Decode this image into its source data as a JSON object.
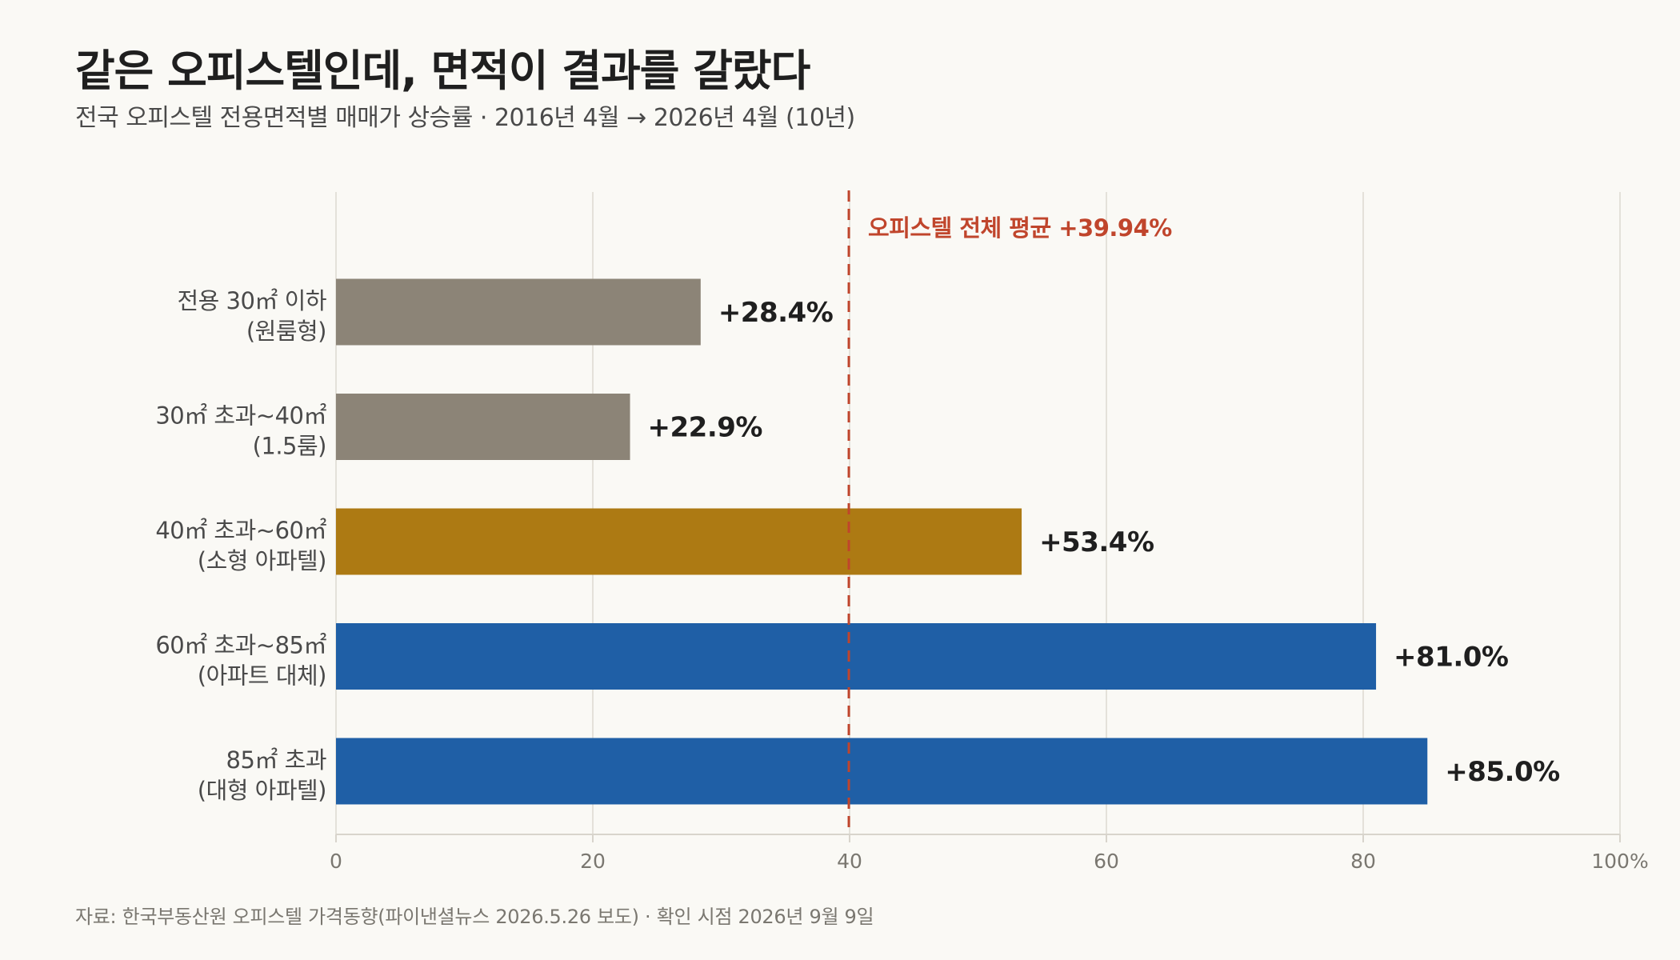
{
  "chart_data": {
    "type": "bar",
    "orientation": "horizontal",
    "title": "같은 오피스텔인데, 면적이 결과를 갈랐다",
    "subtitle": "전국 오피스텔 전용면적별 매매가 상승률 · 2016년 4월 → 2026년 4월 (10년)",
    "categories": [
      [
        "전용 30㎡ 이하",
        "(원룸형)"
      ],
      [
        "30㎡ 초과~40㎡",
        "(1.5룸)"
      ],
      [
        "40㎡ 초과~60㎡",
        "(소형 아파텔)"
      ],
      [
        "60㎡ 초과~85㎡",
        "(아파트 대체)"
      ],
      [
        "85㎡ 초과",
        "(대형 아파텔)"
      ]
    ],
    "values": [
      28.4,
      22.9,
      53.4,
      81.0,
      85.0
    ],
    "value_labels": [
      "+28.4%",
      "+22.9%",
      "+53.4%",
      "+81.0%",
      "+85.0%"
    ],
    "bar_colors": [
      "#8c8477",
      "#8c8477",
      "#ad7a13",
      "#1f5fa6",
      "#1f5fa6"
    ],
    "xlim": [
      0,
      100
    ],
    "xticks": [
      0,
      20,
      40,
      60,
      80,
      100
    ],
    "xtick_labels": [
      "0",
      "20",
      "40",
      "60",
      "80",
      "100%"
    ],
    "reference_line": {
      "value": 39.94,
      "label": "오피스텔 전체 평균 +39.94%",
      "color": "#c0452c",
      "style": "dashed"
    },
    "grid": "vertical",
    "xlabel": "",
    "ylabel": "",
    "source": "자료: 한국부동산원 오피스텔 가격동향(파이낸셜뉴스 2026.5.26 보도) · 확인 시점 2026년 9월 9일"
  }
}
